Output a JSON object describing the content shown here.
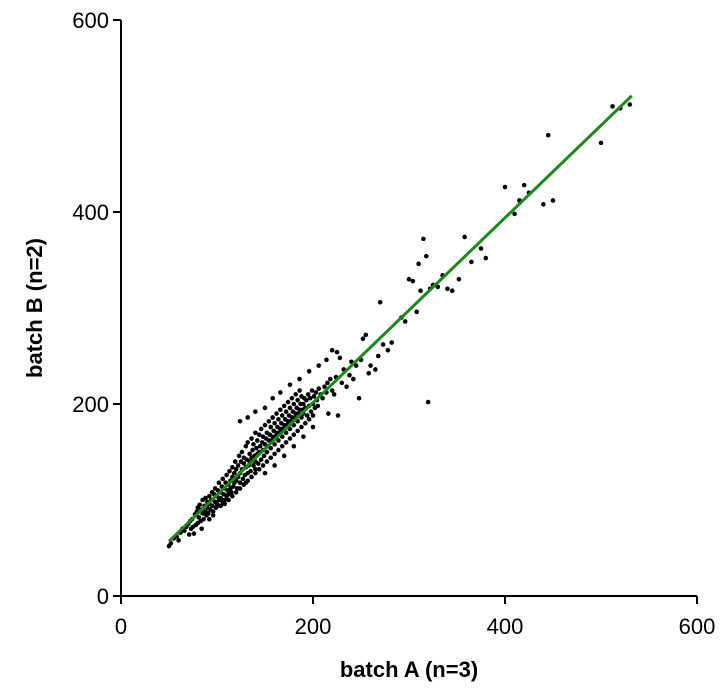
{
  "chart_data": {
    "type": "scatter",
    "xlabel": "batch A (n=3)",
    "ylabel": "batch B (n=2)",
    "xlim": [
      0,
      600
    ],
    "ylim": [
      0,
      600
    ],
    "xticks": [
      0,
      200,
      400,
      600
    ],
    "yticks": [
      0,
      200,
      400,
      600
    ],
    "xtick_labels": [
      "0",
      "200",
      "400",
      "600"
    ],
    "ytick_labels": [
      "0",
      "200",
      "400",
      "600"
    ],
    "grid": false,
    "legend": "none",
    "colors": {
      "points": "#000000",
      "fit_line": "#1a8a1a"
    },
    "fit_line": {
      "x": [
        50,
        532
      ],
      "y": [
        57,
        521
      ]
    },
    "series": [
      {
        "points": [
          [
            50,
            52
          ],
          [
            52,
            55
          ],
          [
            55,
            60
          ],
          [
            58,
            62
          ],
          [
            60,
            58
          ],
          [
            62,
            66
          ],
          [
            64,
            70
          ],
          [
            66,
            68
          ],
          [
            68,
            72
          ],
          [
            70,
            75
          ],
          [
            71,
            64
          ],
          [
            72,
            78
          ],
          [
            73,
            70
          ],
          [
            74,
            80
          ],
          [
            75,
            72
          ],
          [
            76,
            65
          ],
          [
            77,
            85
          ],
          [
            78,
            74
          ],
          [
            79,
            88
          ],
          [
            80,
            76
          ],
          [
            80,
            92
          ],
          [
            81,
            82
          ],
          [
            82,
            95
          ],
          [
            83,
            78
          ],
          [
            84,
            90
          ],
          [
            85,
            86
          ],
          [
            85,
            100
          ],
          [
            86,
            80
          ],
          [
            87,
            94
          ],
          [
            88,
            88
          ],
          [
            88,
            102
          ],
          [
            89,
            84
          ],
          [
            90,
            98
          ],
          [
            90,
            92
          ],
          [
            91,
            86
          ],
          [
            92,
            104
          ],
          [
            92,
            96
          ],
          [
            93,
            90
          ],
          [
            94,
            100
          ],
          [
            95,
            94
          ],
          [
            95,
            108
          ],
          [
            96,
            88
          ],
          [
            97,
            106
          ],
          [
            98,
            98
          ],
          [
            98,
            112
          ],
          [
            99,
            92
          ],
          [
            100,
            104
          ],
          [
            100,
            96
          ],
          [
            101,
            110
          ],
          [
            102,
            100
          ],
          [
            102,
            118
          ],
          [
            103,
            94
          ],
          [
            104,
            108
          ],
          [
            104,
            102
          ],
          [
            105,
            114
          ],
          [
            106,
            98
          ],
          [
            106,
            122
          ],
          [
            107,
            106
          ],
          [
            108,
            112
          ],
          [
            108,
            100
          ],
          [
            109,
            118
          ],
          [
            110,
            104
          ],
          [
            110,
            126
          ],
          [
            111,
            110
          ],
          [
            112,
            116
          ],
          [
            112,
            106
          ],
          [
            113,
            130
          ],
          [
            114,
            112
          ],
          [
            114,
            120
          ],
          [
            115,
            108
          ],
          [
            116,
            124
          ],
          [
            116,
            134
          ],
          [
            117,
            114
          ],
          [
            118,
            128
          ],
          [
            118,
            118
          ],
          [
            119,
            140
          ],
          [
            120,
            120
          ],
          [
            120,
            132
          ],
          [
            121,
            112
          ],
          [
            122,
            136
          ],
          [
            122,
            124
          ],
          [
            123,
            146
          ],
          [
            124,
            128
          ],
          [
            124,
            118
          ],
          [
            125,
            140
          ],
          [
            126,
            132
          ],
          [
            126,
            150
          ],
          [
            127,
            122
          ],
          [
            128,
            138
          ],
          [
            128,
            144
          ],
          [
            129,
            126
          ],
          [
            130,
            156
          ],
          [
            130,
            134
          ],
          [
            131,
            142
          ],
          [
            132,
            128
          ],
          [
            132,
            160
          ],
          [
            133,
            136
          ],
          [
            134,
            148
          ],
          [
            134,
            140
          ],
          [
            135,
            130
          ],
          [
            136,
            164
          ],
          [
            136,
            144
          ],
          [
            137,
            152
          ],
          [
            138,
            136
          ],
          [
            138,
            158
          ],
          [
            139,
            146
          ],
          [
            140,
            170
          ],
          [
            140,
            140
          ],
          [
            141,
            154
          ],
          [
            142,
            148
          ],
          [
            142,
            162
          ],
          [
            143,
            138
          ],
          [
            144,
            168
          ],
          [
            144,
            150
          ],
          [
            145,
            156
          ],
          [
            146,
            142
          ],
          [
            146,
            174
          ],
          [
            147,
            160
          ],
          [
            148,
            152
          ],
          [
            148,
            166
          ],
          [
            149,
            146
          ],
          [
            150,
            178
          ],
          [
            150,
            158
          ],
          [
            151,
            164
          ],
          [
            152,
            150
          ],
          [
            152,
            170
          ],
          [
            153,
            156
          ],
          [
            154,
            182
          ],
          [
            154,
            162
          ],
          [
            155,
            168
          ],
          [
            156,
            154
          ],
          [
            156,
            176
          ],
          [
            157,
            162
          ],
          [
            158,
            186
          ],
          [
            158,
            166
          ],
          [
            159,
            172
          ],
          [
            160,
            158
          ],
          [
            160,
            180
          ],
          [
            161,
            166
          ],
          [
            162,
            190
          ],
          [
            162,
            170
          ],
          [
            163,
            176
          ],
          [
            164,
            162
          ],
          [
            164,
            184
          ],
          [
            165,
            170
          ],
          [
            166,
            194
          ],
          [
            166,
            174
          ],
          [
            167,
            180
          ],
          [
            168,
            166
          ],
          [
            168,
            188
          ],
          [
            169,
            174
          ],
          [
            170,
            198
          ],
          [
            170,
            178
          ],
          [
            171,
            184
          ],
          [
            172,
            170
          ],
          [
            172,
            192
          ],
          [
            173,
            178
          ],
          [
            174,
            202
          ],
          [
            174,
            182
          ],
          [
            175,
            188
          ],
          [
            176,
            174
          ],
          [
            176,
            196
          ],
          [
            177,
            182
          ],
          [
            178,
            206
          ],
          [
            178,
            186
          ],
          [
            179,
            192
          ],
          [
            180,
            178
          ],
          [
            180,
            200
          ],
          [
            181,
            186
          ],
          [
            182,
            210
          ],
          [
            182,
            190
          ],
          [
            183,
            196
          ],
          [
            184,
            182
          ],
          [
            184,
            204
          ],
          [
            185,
            190
          ],
          [
            186,
            214
          ],
          [
            186,
            194
          ],
          [
            187,
            200
          ],
          [
            188,
            186
          ],
          [
            188,
            208
          ],
          [
            189,
            194
          ],
          [
            190,
            200
          ],
          [
            190,
            190
          ],
          [
            191,
            206
          ],
          [
            192,
            196
          ],
          [
            193,
            204
          ],
          [
            194,
            188
          ],
          [
            195,
            210
          ],
          [
            196,
            198
          ],
          [
            197,
            206
          ],
          [
            198,
            192
          ],
          [
            199,
            214
          ],
          [
            200,
            200
          ],
          [
            201,
            208
          ],
          [
            202,
            196
          ],
          [
            203,
            212
          ],
          [
            204,
            204
          ],
          [
            205,
            198
          ],
          [
            206,
            216
          ],
          [
            208,
            210
          ],
          [
            210,
            206
          ],
          [
            212,
            218
          ],
          [
            214,
            212
          ],
          [
            215,
            222
          ],
          [
            216,
            190
          ],
          [
            218,
            226
          ],
          [
            220,
            214
          ],
          [
            222,
            210
          ],
          [
            224,
            228
          ],
          [
            226,
            188
          ],
          [
            220,
            256
          ],
          [
            225,
            254
          ],
          [
            228,
            248
          ],
          [
            230,
            222
          ],
          [
            232,
            236
          ],
          [
            235,
            218
          ],
          [
            238,
            230
          ],
          [
            240,
            244
          ],
          [
            242,
            226
          ],
          [
            245,
            240
          ],
          [
            248,
            206
          ],
          [
            250,
            246
          ],
          [
            252,
            268
          ],
          [
            255,
            272
          ],
          [
            258,
            232
          ],
          [
            260,
            240
          ],
          [
            265,
            236
          ],
          [
            268,
            250
          ],
          [
            270,
            306
          ],
          [
            273,
            262
          ],
          [
            278,
            256
          ],
          [
            282,
            264
          ],
          [
            292,
            290
          ],
          [
            296,
            286
          ],
          [
            300,
            330
          ],
          [
            304,
            328
          ],
          [
            308,
            296
          ],
          [
            310,
            346
          ],
          [
            312,
            318
          ],
          [
            315,
            372
          ],
          [
            318,
            354
          ],
          [
            320,
            202
          ],
          [
            322,
            320
          ],
          [
            325,
            324
          ],
          [
            330,
            322
          ],
          [
            335,
            334
          ],
          [
            340,
            320
          ],
          [
            345,
            318
          ],
          [
            352,
            330
          ],
          [
            358,
            374
          ],
          [
            365,
            348
          ],
          [
            375,
            362
          ],
          [
            380,
            352
          ],
          [
            400,
            426
          ],
          [
            410,
            398
          ],
          [
            415,
            412
          ],
          [
            420,
            428
          ],
          [
            425,
            420
          ],
          [
            440,
            408
          ],
          [
            445,
            480
          ],
          [
            450,
            412
          ],
          [
            500,
            472
          ],
          [
            512,
            510
          ],
          [
            520,
            508
          ],
          [
            530,
            512
          ],
          [
            84,
            70
          ],
          [
            92,
            80
          ],
          [
            96,
            84
          ],
          [
            104,
            94
          ],
          [
            108,
            96
          ],
          [
            112,
            100
          ],
          [
            116,
            104
          ],
          [
            120,
            108
          ],
          [
            124,
            112
          ],
          [
            128,
            116
          ],
          [
            132,
            120
          ],
          [
            136,
            124
          ],
          [
            140,
            128
          ],
          [
            144,
            132
          ],
          [
            148,
            136
          ],
          [
            152,
            140
          ],
          [
            156,
            144
          ],
          [
            160,
            148
          ],
          [
            164,
            152
          ],
          [
            168,
            156
          ],
          [
            172,
            160
          ],
          [
            176,
            164
          ],
          [
            180,
            168
          ],
          [
            184,
            172
          ],
          [
            188,
            176
          ],
          [
            192,
            180
          ],
          [
            196,
            184
          ],
          [
            200,
            188
          ],
          [
            140,
            132
          ],
          [
            130,
            118
          ],
          [
            150,
            128
          ],
          [
            160,
            136
          ],
          [
            170,
            146
          ],
          [
            180,
            156
          ],
          [
            190,
            166
          ],
          [
            200,
            176
          ],
          [
            124,
            182
          ],
          [
            132,
            186
          ],
          [
            140,
            192
          ],
          [
            150,
            196
          ],
          [
            158,
            206
          ],
          [
            166,
            212
          ],
          [
            176,
            220
          ],
          [
            186,
            226
          ],
          [
            196,
            234
          ],
          [
            206,
            240
          ],
          [
            214,
            246
          ]
        ]
      }
    ]
  }
}
